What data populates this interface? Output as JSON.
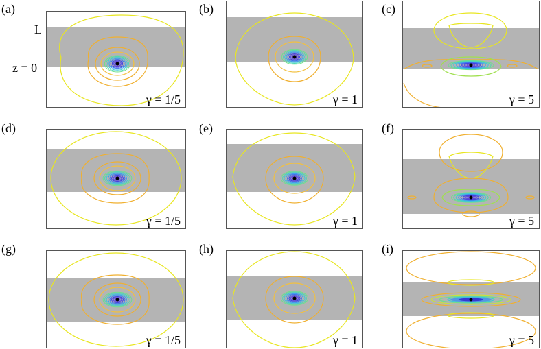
{
  "axis_labels": {
    "top": "L",
    "bottom": "z = 0"
  },
  "colors": {
    "slab": "#b4b4b4",
    "contour_outer": "#e8e620",
    "contour_mid": "#f0b030",
    "contour_inner": "#60e0a0",
    "contour_core": "#3040e0",
    "source": "#000000"
  },
  "panels": [
    {
      "label": "(a)",
      "gamma": "γ = 1/5"
    },
    {
      "label": "(b)",
      "gamma": "γ = 1"
    },
    {
      "label": "(c)",
      "gamma": "γ = 5"
    },
    {
      "label": "(d)",
      "gamma": "γ = 1/5"
    },
    {
      "label": "(e)",
      "gamma": "γ = 1"
    },
    {
      "label": "(f)",
      "gamma": "γ = 5"
    },
    {
      "label": "(g)",
      "gamma": "γ = 1/5"
    },
    {
      "label": "(h)",
      "gamma": "γ = 1"
    },
    {
      "label": "(i)",
      "gamma": "γ = 5"
    }
  ]
}
